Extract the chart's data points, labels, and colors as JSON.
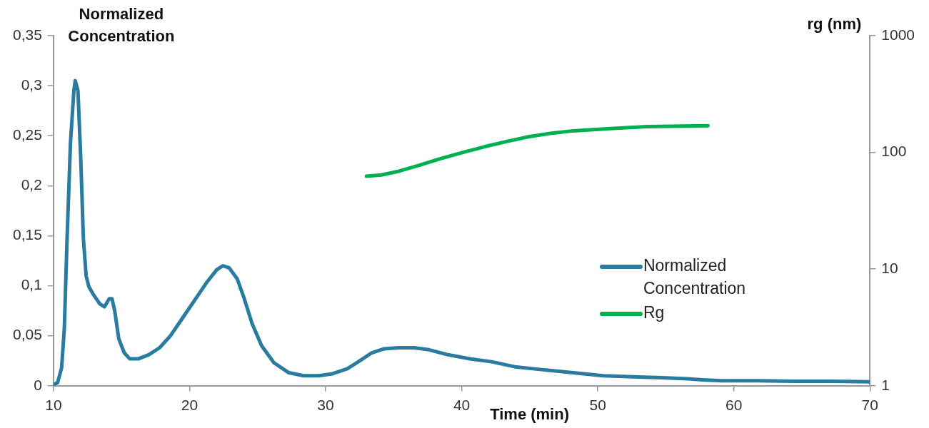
{
  "chart_data": {
    "type": "line",
    "xlabel": "Time (min)",
    "ylabel": "Normalized Concentration",
    "y2label": "rg (nm)",
    "xlim": [
      10,
      70
    ],
    "xticks": [
      10,
      20,
      30,
      40,
      50,
      60,
      70
    ],
    "ylim": [
      0,
      0.35
    ],
    "yticks": [
      {
        "value": 0,
        "label": "0"
      },
      {
        "value": 0.05,
        "label": "0,05"
      },
      {
        "value": 0.1,
        "label": "0,1"
      },
      {
        "value": 0.15,
        "label": "0,15"
      },
      {
        "value": 0.2,
        "label": "0,2"
      },
      {
        "value": 0.25,
        "label": "0,25"
      },
      {
        "value": 0.3,
        "label": "0,3"
      },
      {
        "value": 0.35,
        "label": "0,35"
      }
    ],
    "y2lim": [
      1,
      1000
    ],
    "y2ticks": [
      1,
      10,
      100,
      1000
    ],
    "log": "y2",
    "grid": false,
    "legend": "right",
    "marker": "none",
    "line_style": "solid",
    "series": [
      {
        "name": "Normalized Concentration",
        "color": "#2a7ba0",
        "x": [
          10.0,
          10.3,
          10.6,
          10.8,
          11.0,
          11.25,
          11.5,
          11.6,
          11.8,
          12.0,
          12.2,
          12.4,
          12.6,
          12.9,
          13.4,
          13.75,
          14.1,
          14.3,
          14.5,
          14.8,
          15.2,
          15.6,
          16.25,
          17.0,
          17.8,
          18.6,
          19.4,
          20.5,
          21.3,
          22.0,
          22.45,
          22.9,
          23.5,
          24.0,
          24.6,
          25.3,
          26.2,
          27.3,
          28.4,
          29.5,
          30.5,
          31.6,
          32.4,
          33.4,
          34.3,
          35.4,
          36.5,
          37.6,
          39.0,
          40.6,
          42.2,
          43.9,
          46.0,
          48.2,
          50.4,
          52.6,
          54.7,
          56.6,
          57.7,
          59.1,
          61.8,
          64.5,
          67.2,
          70.0
        ],
        "values": [
          0.001,
          0.003,
          0.018,
          0.058,
          0.147,
          0.243,
          0.295,
          0.305,
          0.295,
          0.229,
          0.147,
          0.11,
          0.099,
          0.092,
          0.082,
          0.079,
          0.087,
          0.087,
          0.075,
          0.047,
          0.033,
          0.027,
          0.027,
          0.031,
          0.038,
          0.05,
          0.066,
          0.088,
          0.104,
          0.116,
          0.12,
          0.118,
          0.107,
          0.088,
          0.062,
          0.04,
          0.023,
          0.013,
          0.01,
          0.01,
          0.012,
          0.017,
          0.024,
          0.033,
          0.037,
          0.038,
          0.038,
          0.036,
          0.031,
          0.027,
          0.024,
          0.019,
          0.016,
          0.013,
          0.01,
          0.009,
          0.008,
          0.007,
          0.006,
          0.005,
          0.005,
          0.0045,
          0.0045,
          0.004
        ]
      },
      {
        "name": "Rg",
        "color": "#00b04f",
        "axis": "y2",
        "x": [
          33.0,
          34.1,
          35.4,
          36.8,
          38.4,
          40.1,
          41.7,
          43.3,
          44.9,
          46.6,
          48.2,
          50.9,
          53.6,
          56.3,
          58.1
        ],
        "values": [
          62.5,
          64,
          69,
          77,
          88,
          100,
          112,
          124,
          136,
          146,
          153,
          160,
          166,
          168,
          169
        ]
      }
    ]
  }
}
